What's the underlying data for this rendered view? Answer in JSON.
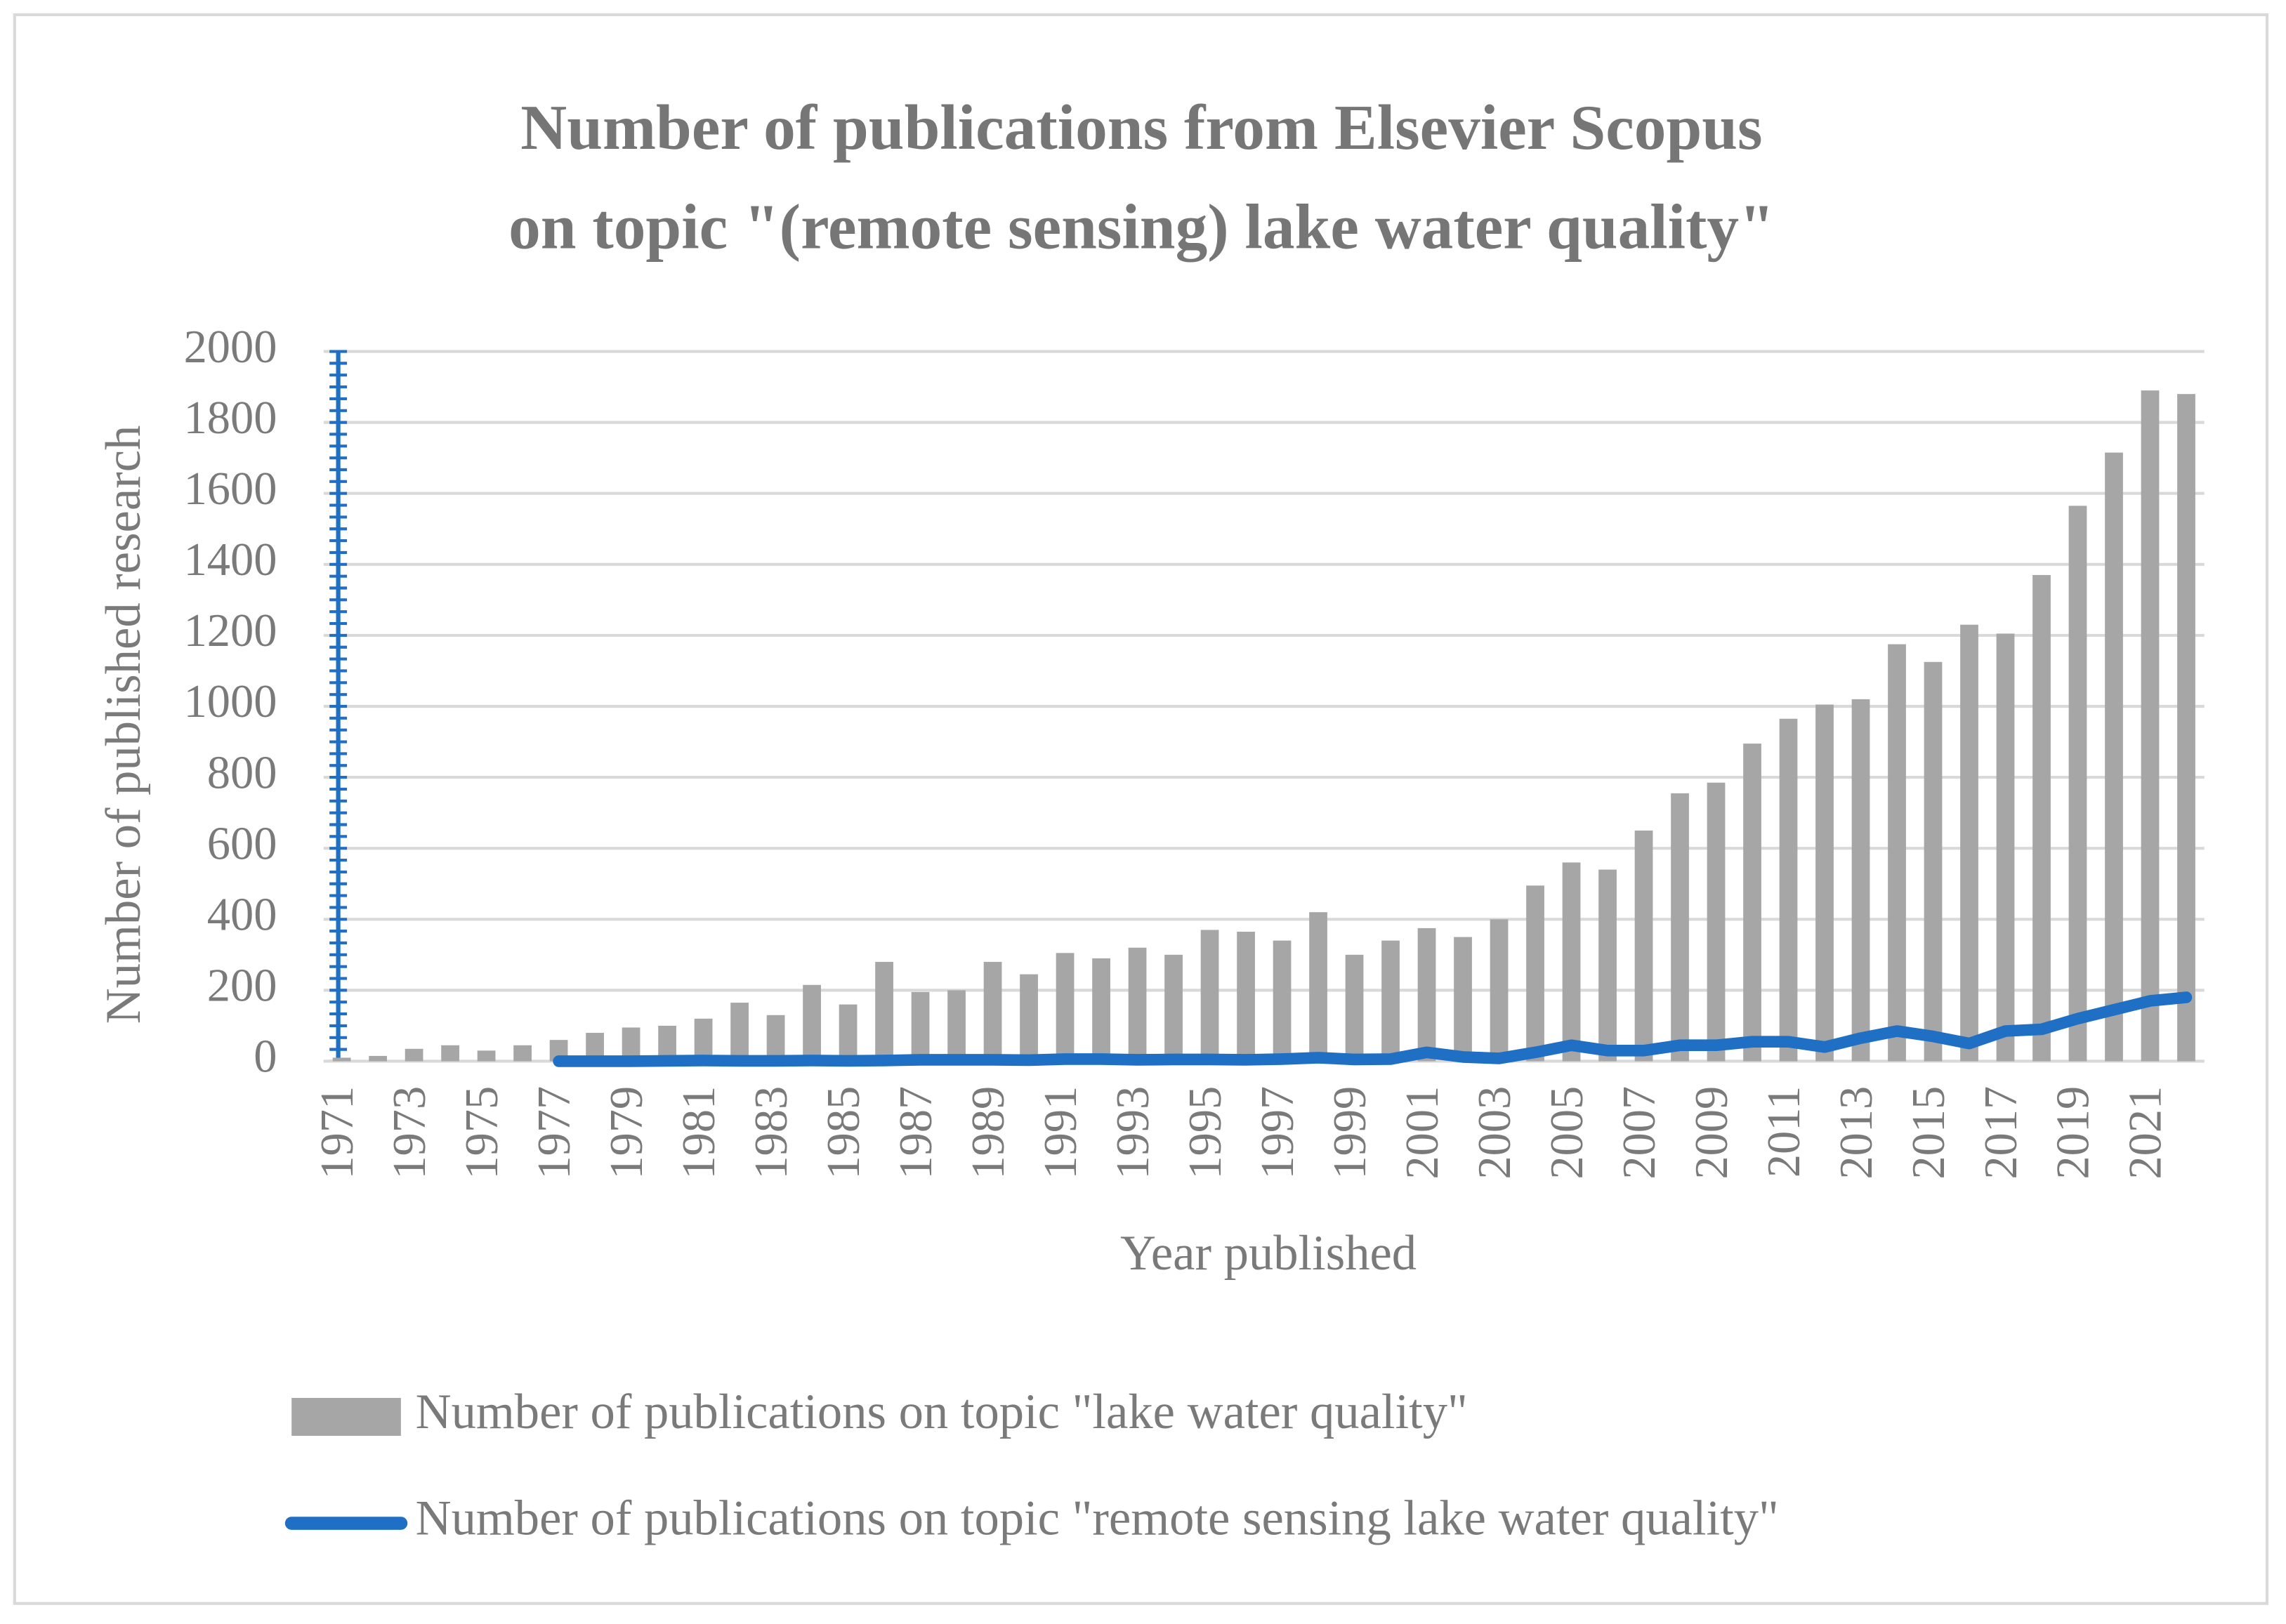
{
  "chart_data": {
    "type": "bar-line",
    "title": [
      "Number of publications from Elsevier Scopus",
      "on topic \"(remote sensing) lake water quality\""
    ],
    "x_label": "Year published",
    "y_label": "Number of published research",
    "categories": [
      "1971",
      null,
      "1973",
      null,
      "1975",
      null,
      "1977",
      null,
      "1979",
      null,
      "1981",
      null,
      "1983",
      null,
      "1985",
      null,
      "1987",
      null,
      "1989",
      null,
      "1991",
      null,
      "1993",
      null,
      "1995",
      null,
      "1997",
      null,
      "1999",
      null,
      "2001",
      null,
      "2003",
      null,
      "2005",
      null,
      "2007",
      null,
      "2009",
      null,
      "2011",
      null,
      "2013",
      null,
      "2015",
      null,
      "2017",
      null,
      "2019",
      null,
      "2021",
      null
    ],
    "series": [
      {
        "name": "Number of publications on topic \"lake water quality\"",
        "type": "bar",
        "color": "#a6a6a6",
        "values": [
          10,
          15,
          35,
          45,
          30,
          45,
          60,
          80,
          95,
          100,
          120,
          165,
          130,
          215,
          160,
          280,
          195,
          200,
          280,
          245,
          305,
          290,
          320,
          300,
          370,
          365,
          340,
          420,
          300,
          340,
          375,
          350,
          400,
          495,
          560,
          540,
          650,
          755,
          785,
          895,
          965,
          1005,
          1020,
          1175,
          1125,
          1230,
          1205,
          1370,
          1565,
          1715,
          1890,
          1880
        ]
      },
      {
        "name": "Number of publications on topic \"remote sensing lake water quality\"",
        "type": "line",
        "color": "#1f6fc5",
        "values": [
          null,
          null,
          null,
          null,
          null,
          null,
          0,
          0,
          0,
          1,
          2,
          1,
          1,
          2,
          1,
          2,
          4,
          4,
          4,
          3,
          6,
          6,
          4,
          5,
          5,
          4,
          6,
          10,
          5,
          6,
          25,
          12,
          8,
          25,
          45,
          30,
          30,
          45,
          45,
          55,
          55,
          40,
          65,
          85,
          70,
          50,
          85,
          90,
          120,
          145,
          170,
          180
        ]
      }
    ],
    "ylim": [
      0,
      2000
    ],
    "yticks": [
      0,
      200,
      400,
      600,
      800,
      1000,
      1200,
      1400,
      1600,
      1800,
      2000
    ],
    "grid": true,
    "legend": "bottom"
  }
}
